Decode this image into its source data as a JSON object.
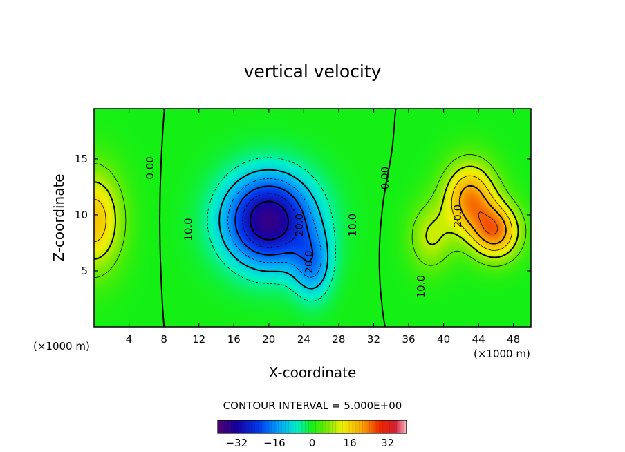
{
  "chart_data": {
    "type": "heatmap",
    "title": "vertical velocity",
    "xlabel": "X-coordinate",
    "ylabel": "Z-coordinate",
    "x_unit_label_left": "(×1000 m)",
    "x_unit_label_right": "(×1000 m)",
    "xlim": [
      0,
      50
    ],
    "ylim": [
      0,
      19.5
    ],
    "xticks": [
      4,
      8,
      12,
      16,
      20,
      24,
      28,
      32,
      36,
      40,
      44,
      48
    ],
    "yticks": [
      5,
      10,
      15
    ],
    "color_range": [
      -40,
      40
    ],
    "contour_interval_text": "CONTOUR INTERVAL = 5.000E+00",
    "colorbar_ticks": [
      -32,
      -16,
      0,
      16,
      32
    ],
    "colorbar_tick_labels": [
      "−32",
      "−16",
      "0",
      "16",
      "32"
    ],
    "features": [
      {
        "name": "left-updraft",
        "x": 0,
        "z": 9.5,
        "value": 18,
        "sx": 3.2,
        "sz": 4.5
      },
      {
        "name": "central-downdraft",
        "x": 20,
        "z": 9.5,
        "value": -36,
        "sx": 5.0,
        "sz": 4.0
      },
      {
        "name": "downdraft-tail",
        "x": 25,
        "z": 5.5,
        "value": -14,
        "sx": 2.2,
        "sz": 3.0
      },
      {
        "name": "right-updraft-upper",
        "x": 43,
        "z": 11.5,
        "value": 22,
        "sx": 3.0,
        "sz": 3.2
      },
      {
        "name": "right-updraft-core",
        "x": 46,
        "z": 8.5,
        "value": 22,
        "sx": 2.8,
        "sz": 2.5
      },
      {
        "name": "right-updraft-lower",
        "x": 38.5,
        "z": 8,
        "value": 10,
        "sx": 2.5,
        "sz": 3.0
      }
    ],
    "contour_labels": [
      {
        "text": "0.00",
        "x": 6.8,
        "z": 14.2
      },
      {
        "text": "10.0",
        "x": 11.2,
        "z": 8.7
      },
      {
        "text": "20.0",
        "x": 23.9,
        "z": 9.1
      },
      {
        "text": "20.0",
        "x": 25.0,
        "z": 5.8
      },
      {
        "text": "10.0",
        "x": 30.0,
        "z": 9.1
      },
      {
        "text": "0.00",
        "x": 33.7,
        "z": 13.3
      },
      {
        "text": "20.0",
        "x": 42.0,
        "z": 9.9
      },
      {
        "text": "10.0",
        "x": 37.8,
        "z": 3.6
      }
    ]
  }
}
